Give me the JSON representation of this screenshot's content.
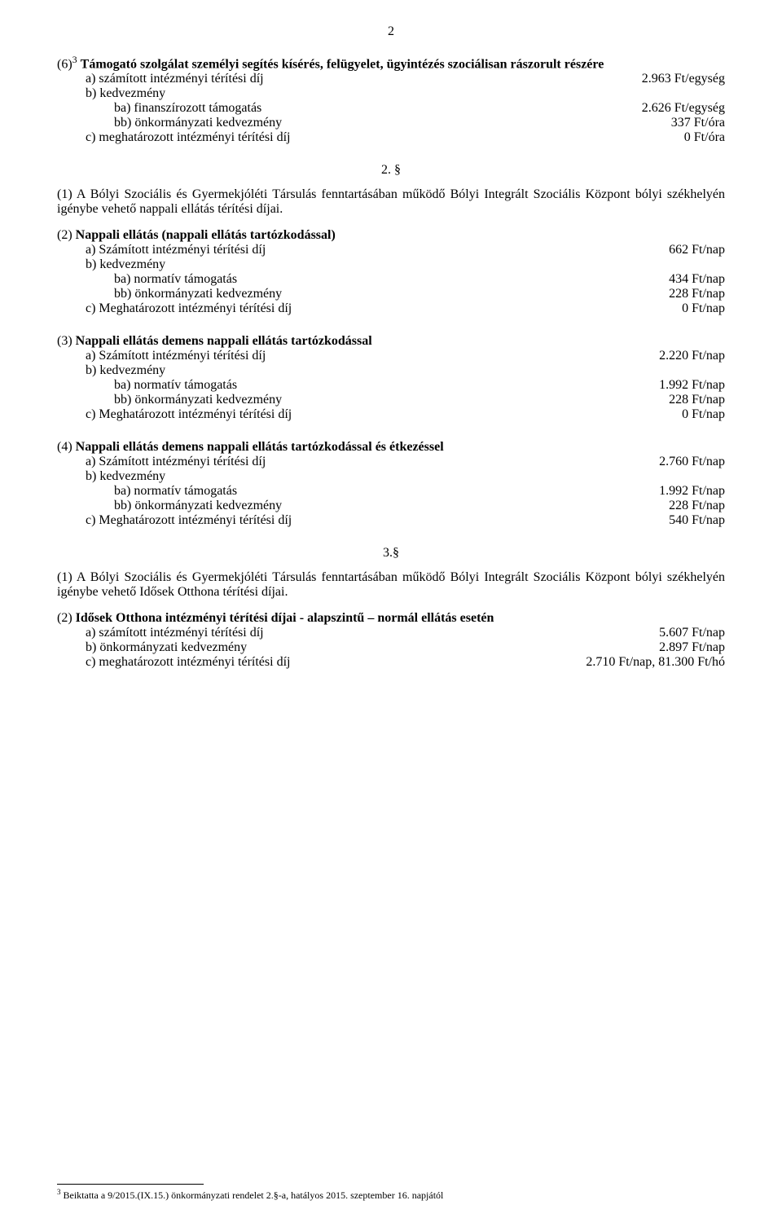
{
  "pageNumber": "2",
  "section6": {
    "heading_prefix": "(6)",
    "heading_sup": "3",
    "heading_text_bold": "Támogató szolgálat személyi segítés kísérés, felügyelet, ügyintézés szociálisan rászorult részére",
    "a": {
      "label": "a) számított intézményi térítési díj",
      "value": "2.963 Ft/egység"
    },
    "b_label": "b) kedvezmény",
    "ba": {
      "label": "ba) finanszírozott támogatás",
      "value": "2.626 Ft/egység"
    },
    "bb": {
      "label": "bb) önkormányzati kedvezmény",
      "value": "337 Ft/óra"
    },
    "c": {
      "label": "c) meghatározott intézményi térítési díj",
      "value": "0 Ft/óra"
    }
  },
  "para2": {
    "title": "2. §",
    "p1": "(1) A Bólyi Szociális és Gyermekjóléti Társulás fenntartásában működő Bólyi Integrált Szociális Központ bólyi székhelyén igénybe vehető nappali ellátás térítési díjai.",
    "s2": {
      "heading_prefix": "(2)",
      "heading_text_bold": "Nappali ellátás (nappali ellátás tartózkodással)",
      "a": {
        "label": "a) Számított intézményi térítési díj",
        "value": "662 Ft/nap"
      },
      "b_label": "b) kedvezmény",
      "ba": {
        "label": "ba) normatív támogatás",
        "value": "434 Ft/nap"
      },
      "bb": {
        "label": "bb) önkormányzati kedvezmény",
        "value": "228 Ft/nap"
      },
      "c": {
        "label": "c) Meghatározott intézményi térítési díj",
        "value": "0 Ft/nap"
      }
    },
    "s3": {
      "heading_prefix": "(3)",
      "heading_text_bold": "Nappali ellátás demens nappali ellátás tartózkodással",
      "a": {
        "label": "a) Számított intézményi térítési díj",
        "value": "2.220 Ft/nap"
      },
      "b_label": "b) kedvezmény",
      "ba": {
        "label": "ba) normatív támogatás",
        "value": "1.992 Ft/nap"
      },
      "bb": {
        "label": "bb) önkormányzati kedvezmény",
        "value": "228 Ft/nap"
      },
      "c": {
        "label": "c) Meghatározott intézményi térítési díj",
        "value": "0 Ft/nap"
      }
    },
    "s4": {
      "heading_prefix": "(4)",
      "heading_text_bold": "Nappali ellátás demens nappali ellátás tartózkodással és étkezéssel",
      "a": {
        "label": "a) Számított intézményi térítési díj",
        "value": "2.760 Ft/nap"
      },
      "b_label": "b) kedvezmény",
      "ba": {
        "label": "ba) normatív támogatás",
        "value": "1.992 Ft/nap"
      },
      "bb": {
        "label": "bb) önkormányzati kedvezmény",
        "value": "228 Ft/nap"
      },
      "c": {
        "label": "c) Meghatározott intézményi térítési díj",
        "value": "540 Ft/nap"
      }
    }
  },
  "para3": {
    "title": "3.§",
    "p1": "(1) A Bólyi Szociális és Gyermekjóléti Társulás fenntartásában működő Bólyi Integrált Szociális Központ bólyi székhelyén igénybe vehető Idősek Otthona térítési díjai.",
    "s2": {
      "heading_prefix": "(2)",
      "heading_text_bold": "Idősek Otthona intézményi térítési díjai - alapszintű – normál ellátás esetén",
      "a": {
        "label": "a) számított intézményi térítési díj",
        "value": "5.607 Ft/nap"
      },
      "b": {
        "label": "b) önkormányzati kedvezmény",
        "value": "2.897 Ft/nap"
      },
      "c": {
        "label": "c) meghatározott intézményi térítési díj",
        "value": "2.710 Ft/nap,  81.300 Ft/hó"
      }
    }
  },
  "footnote": {
    "sup": "3",
    "text": " Beiktatta a 9/2015.(IX.15.) önkormányzati rendelet 2.§-a, hatályos 2015. szeptember 16. napjától"
  }
}
